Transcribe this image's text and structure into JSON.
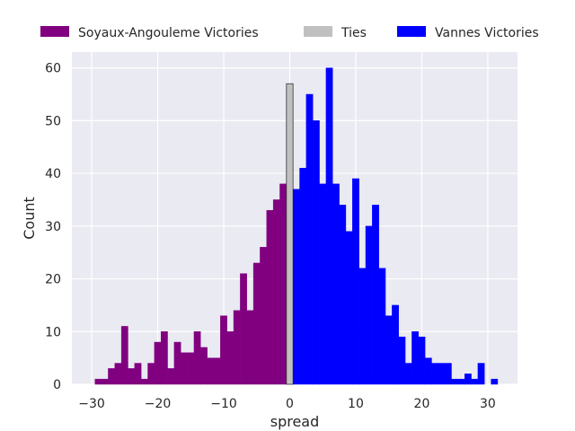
{
  "chart_data": {
    "type": "bar",
    "title": "",
    "xlabel": "spread",
    "ylabel": "Count",
    "xlim": [
      -33,
      34.5
    ],
    "ylim": [
      0,
      63
    ],
    "xticks": [
      -30,
      -20,
      -10,
      0,
      10,
      20,
      30
    ],
    "yticks": [
      0,
      10,
      20,
      30,
      40,
      50,
      60
    ],
    "grid": true,
    "legend_position": "top, above plot",
    "background_color": "#eaeaf2",
    "series": [
      {
        "name": "Soyaux-Angouleme Victories",
        "color": "#800080",
        "x": [
          -29,
          -28,
          -27,
          -26,
          -25,
          -24,
          -23,
          -22,
          -21,
          -20,
          -19,
          -18,
          -17,
          -16,
          -15,
          -14,
          -13,
          -12,
          -11,
          -10,
          -9,
          -8,
          -7,
          -6,
          -5,
          -4,
          -3,
          -2,
          -1
        ],
        "values": [
          1,
          1,
          3,
          4,
          11,
          3,
          4,
          1,
          4,
          8,
          10,
          3,
          8,
          6,
          6,
          10,
          7,
          5,
          5,
          13,
          10,
          14,
          21,
          14,
          23,
          26,
          33,
          35,
          38
        ]
      },
      {
        "name": "Ties",
        "color": "#c0c0c0",
        "x": [
          0
        ],
        "values": [
          57
        ]
      },
      {
        "name": "Vannes Victories",
        "color": "#0000ff",
        "x": [
          1,
          2,
          3,
          4,
          5,
          6,
          7,
          8,
          9,
          10,
          11,
          12,
          13,
          14,
          15,
          16,
          17,
          18,
          19,
          20,
          21,
          22,
          23,
          24,
          25,
          26,
          27,
          28,
          29,
          30,
          31
        ],
        "values": [
          37,
          41,
          55,
          50,
          38,
          60,
          38,
          34,
          29,
          39,
          22,
          30,
          34,
          22,
          13,
          15,
          9,
          4,
          10,
          9,
          5,
          4,
          4,
          4,
          1,
          1,
          2,
          1,
          4,
          0,
          1
        ]
      }
    ]
  }
}
